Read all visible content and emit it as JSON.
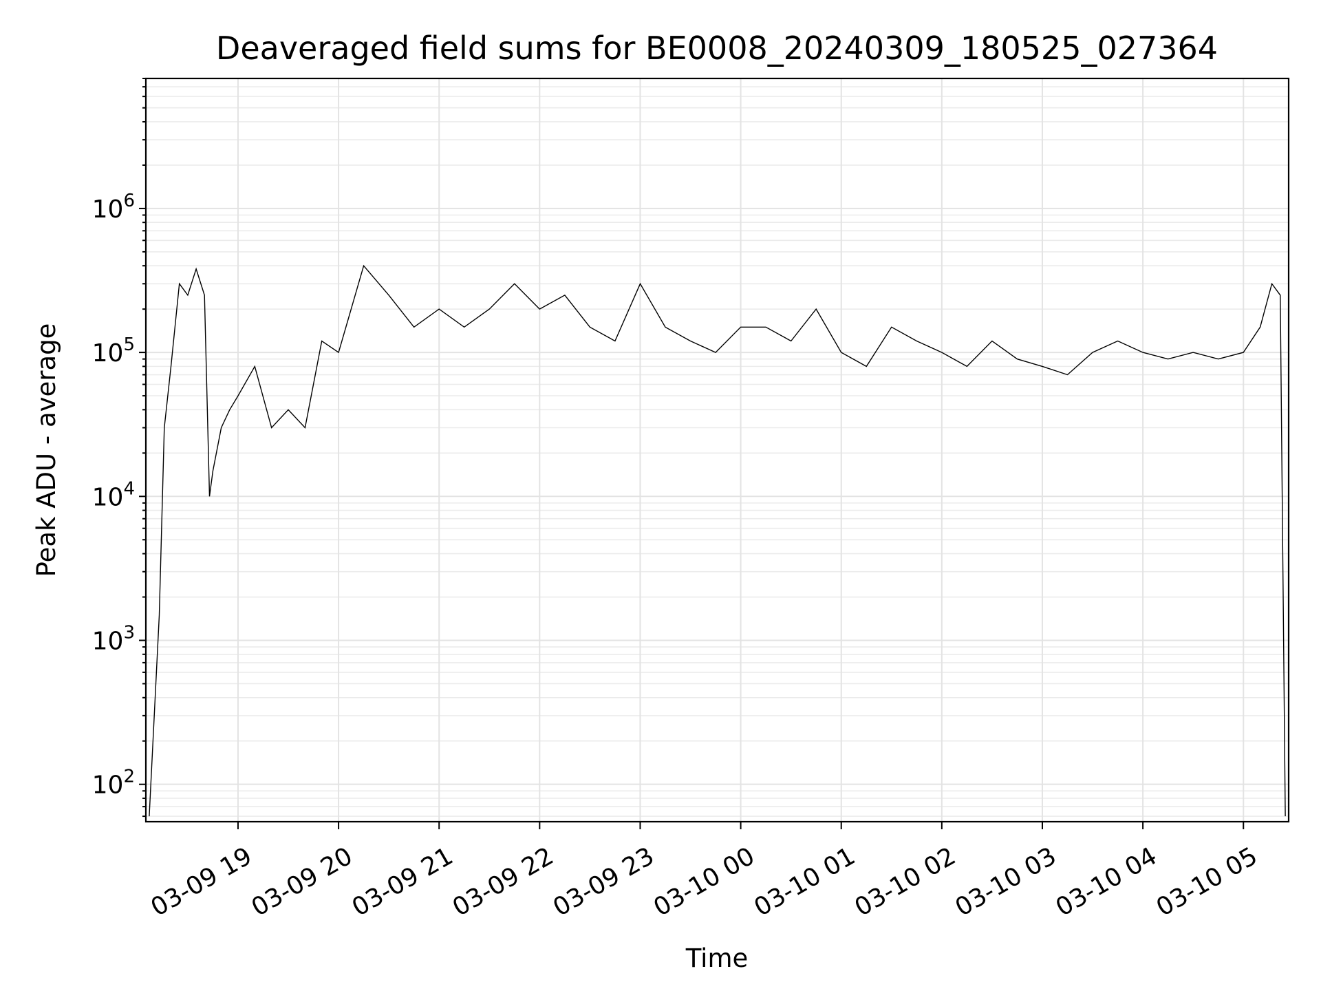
{
  "chart_data": {
    "type": "line",
    "title": "Deaveraged field sums for BE0008_20240309_180525_027364",
    "xlabel": "Time",
    "ylabel": "Peak ADU - average",
    "yscale": "log",
    "ylim": [
      55,
      8000000
    ],
    "xlim": [
      "2024-03-09 18:05",
      "2024-03-10 05:27"
    ],
    "grid": true,
    "line_color": "#000000",
    "x_ticks": [
      "03-09 19",
      "03-09 20",
      "03-09 21",
      "03-09 22",
      "03-09 23",
      "03-10 00",
      "03-10 01",
      "03-10 02",
      "03-10 03",
      "03-10 04",
      "03-10 05"
    ],
    "y_ticks": [
      {
        "base": "10",
        "exp": "2"
      },
      {
        "base": "10",
        "exp": "3"
      },
      {
        "base": "10",
        "exp": "4"
      },
      {
        "base": "10",
        "exp": "5"
      },
      {
        "base": "10",
        "exp": "6"
      }
    ],
    "series": [
      {
        "x": [
          "2024-03-09 18:07",
          "2024-03-09 18:10",
          "2024-03-09 18:13",
          "2024-03-09 18:16",
          "2024-03-09 18:20",
          "2024-03-09 18:25",
          "2024-03-09 18:30",
          "2024-03-09 18:35",
          "2024-03-09 18:40",
          "2024-03-09 18:43",
          "2024-03-09 18:45",
          "2024-03-09 18:50",
          "2024-03-09 18:55",
          "2024-03-09 19:00",
          "2024-03-09 19:10",
          "2024-03-09 19:20",
          "2024-03-09 19:30",
          "2024-03-09 19:40",
          "2024-03-09 19:50",
          "2024-03-09 20:00",
          "2024-03-09 20:15",
          "2024-03-09 20:30",
          "2024-03-09 20:45",
          "2024-03-09 21:00",
          "2024-03-09 21:15",
          "2024-03-09 21:30",
          "2024-03-09 21:45",
          "2024-03-09 22:00",
          "2024-03-09 22:15",
          "2024-03-09 22:30",
          "2024-03-09 22:45",
          "2024-03-09 23:00",
          "2024-03-09 23:15",
          "2024-03-09 23:30",
          "2024-03-09 23:45",
          "2024-03-10 00:00",
          "2024-03-10 00:15",
          "2024-03-10 00:30",
          "2024-03-10 00:45",
          "2024-03-10 01:00",
          "2024-03-10 01:15",
          "2024-03-10 01:30",
          "2024-03-10 01:45",
          "2024-03-10 02:00",
          "2024-03-10 02:15",
          "2024-03-10 02:30",
          "2024-03-10 02:45",
          "2024-03-10 03:00",
          "2024-03-10 03:15",
          "2024-03-10 03:30",
          "2024-03-10 03:45",
          "2024-03-10 04:00",
          "2024-03-10 04:15",
          "2024-03-10 04:30",
          "2024-03-10 04:45",
          "2024-03-10 05:00",
          "2024-03-10 05:10",
          "2024-03-10 05:17",
          "2024-03-10 05:22",
          "2024-03-10 05:25"
        ],
        "y": [
          60,
          300,
          1500,
          30000,
          80000,
          300000,
          250000,
          380000,
          250000,
          10000,
          15000,
          30000,
          40000,
          50000,
          80000,
          30000,
          40000,
          30000,
          120000,
          100000,
          400000,
          250000,
          150000,
          200000,
          150000,
          200000,
          300000,
          200000,
          250000,
          150000,
          120000,
          300000,
          150000,
          120000,
          100000,
          150000,
          150000,
          120000,
          200000,
          100000,
          80000,
          150000,
          120000,
          100000,
          80000,
          120000,
          90000,
          80000,
          70000,
          100000,
          120000,
          100000,
          90000,
          100000,
          90000,
          100000,
          150000,
          300000,
          250000,
          60
        ]
      }
    ]
  }
}
